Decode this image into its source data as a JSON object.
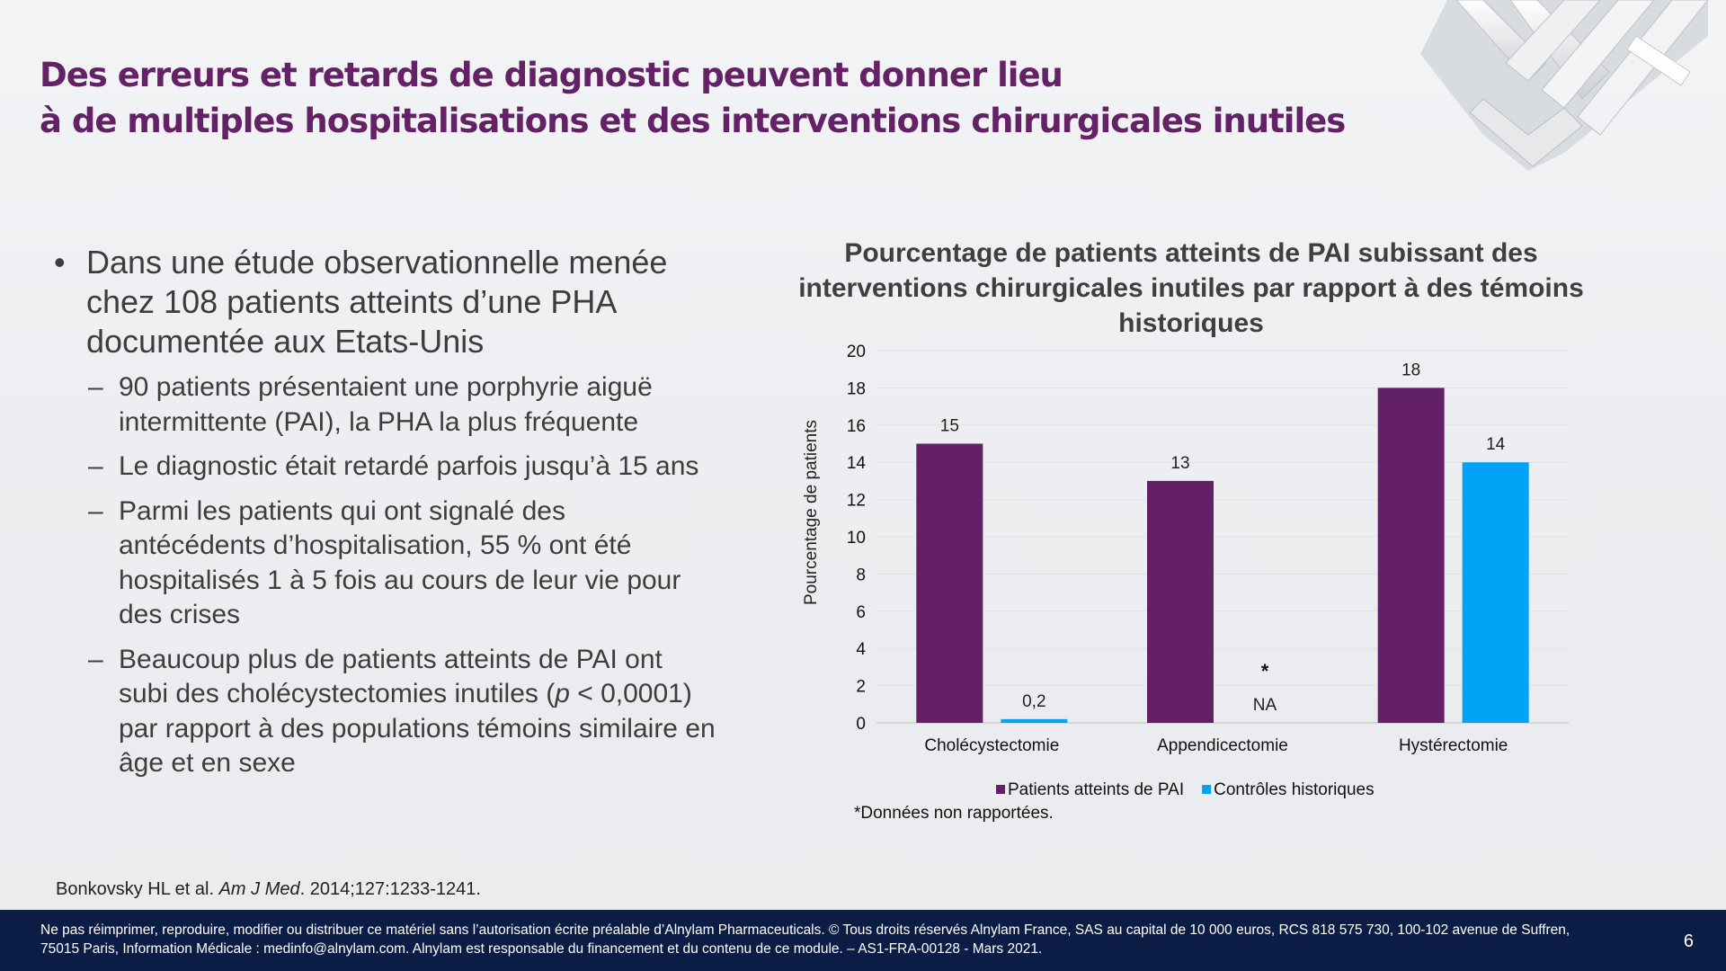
{
  "title": {
    "line1": "Des erreurs et retards de diagnostic peuvent donner lieu",
    "line2": "à de multiples hospitalisations et des interventions chirurgicales inutiles"
  },
  "bullets": [
    {
      "level": 1,
      "marker": "•",
      "text": "Dans une étude observationnelle menée chez 108 patients atteints d’une PHA documentée aux Etats-Unis"
    },
    {
      "level": 2,
      "marker": "–",
      "text": "90 patients présentaient une porphyrie aiguë intermittente (PAI), la PHA la plus fréquente"
    },
    {
      "level": 2,
      "marker": "–",
      "text": "Le diagnostic était retardé parfois jusqu’à 15 ans"
    },
    {
      "level": 2,
      "marker": "–",
      "text": "Parmi les patients qui ont signalé des antécédents d’hospitalisation, 55 % ont été hospitalisés 1 à 5 fois au cours de leur vie pour des crises"
    },
    {
      "level": 2,
      "marker": "–",
      "text_before": "Beaucoup plus de patients atteints de PAI ont subi des cholécystectomies inutiles (",
      "text_italic": "p",
      "text_after": " < 0,0001) par rapport à des populations témoins similaire en âge et en sexe"
    }
  ],
  "chart_data": {
    "type": "bar",
    "title": "Pourcentage de patients atteints de PAI subissant des interventions chirurgicales inutiles par rapport à des témoins historiques",
    "xlabel": "",
    "ylabel": "Pourcentage de patients",
    "ylim": [
      0,
      20
    ],
    "yticks": [
      0,
      2,
      4,
      6,
      8,
      10,
      12,
      14,
      16,
      18,
      20
    ],
    "grid": true,
    "legend_position": "bottom",
    "categories": [
      "Cholécystectomie",
      "Appendicectomie",
      "Hystérectomie"
    ],
    "series": [
      {
        "name": "Patients atteints de PAI",
        "color": "#632066",
        "values": [
          15,
          13,
          18
        ],
        "labels": [
          "15",
          "13",
          "18"
        ]
      },
      {
        "name": "Contrôles historiques",
        "color": "#00a3f5",
        "values": [
          0.2,
          null,
          14
        ],
        "labels": [
          "0,2",
          "NA",
          "14"
        ]
      }
    ],
    "annotations": [
      {
        "category": "Appendicectomie",
        "series": "Contrôles historiques",
        "text": "*"
      }
    ],
    "footnote": "*Données non rapportées."
  },
  "reference": {
    "authors": "Bonkovsky HL et al.",
    "journal": "Am J Med",
    "details": ". 2014;127:1233-1241."
  },
  "footer": {
    "text": "Ne pas réimprimer, reproduire, modifier ou distribuer ce matériel sans l’autorisation écrite préalable d’Alnylam Pharmaceuticals. © Tous droits réservés Alnylam France, SAS au capital de 10 000 euros, RCS 818 575 730, 100-102 avenue de Suffren, 75015 Paris, Information Médicale : medinfo@alnylam.com. Alnylam est responsable du financement et du contenu de ce module. – AS1-FRA-00128 - Mars 2021.",
    "page_number": "6"
  }
}
